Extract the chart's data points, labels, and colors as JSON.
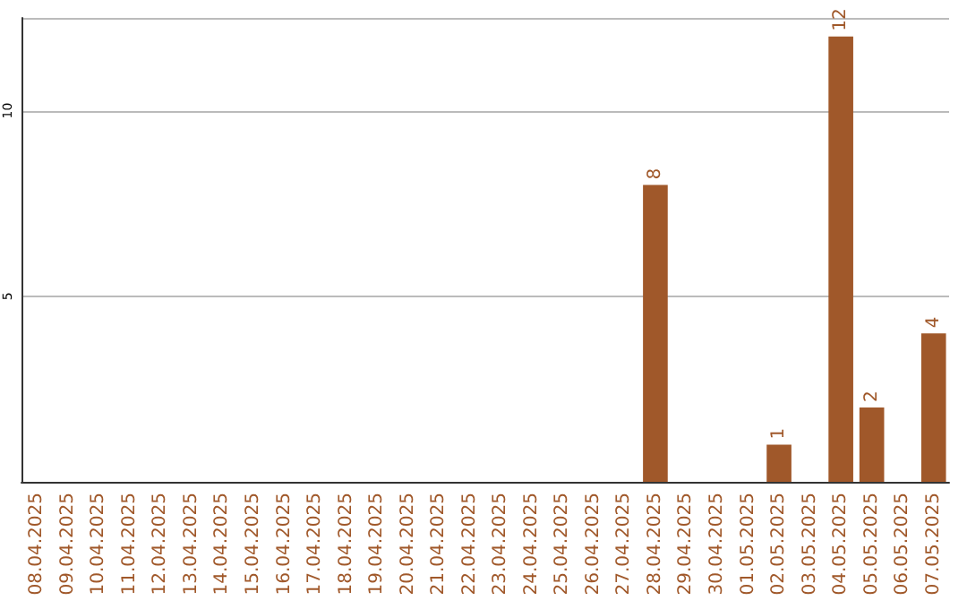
{
  "chart_data": {
    "type": "bar",
    "categories": [
      "08.04.2025",
      "09.04.2025",
      "10.04.2025",
      "11.04.2025",
      "12.04.2025",
      "13.04.2025",
      "14.04.2025",
      "15.04.2025",
      "16.04.2025",
      "17.04.2025",
      "18.04.2025",
      "19.04.2025",
      "20.04.2025",
      "21.04.2025",
      "22.04.2025",
      "23.04.2025",
      "24.04.2025",
      "25.04.2025",
      "26.04.2025",
      "27.04.2025",
      "28.04.2025",
      "29.04.2025",
      "30.04.2025",
      "01.05.2025",
      "02.05.2025",
      "03.05.2025",
      "04.05.2025",
      "05.05.2025",
      "06.05.2025",
      "07.05.2025"
    ],
    "values": [
      0,
      0,
      0,
      0,
      0,
      0,
      0,
      0,
      0,
      0,
      0,
      0,
      0,
      0,
      0,
      0,
      0,
      0,
      0,
      0,
      8,
      0,
      0,
      0,
      1,
      0,
      12,
      2,
      0,
      4
    ],
    "value_labels": [
      null,
      null,
      null,
      null,
      null,
      null,
      null,
      null,
      null,
      null,
      null,
      null,
      null,
      null,
      null,
      null,
      null,
      null,
      null,
      null,
      "8",
      null,
      null,
      null,
      "1",
      null,
      "12",
      "2",
      null,
      "4"
    ],
    "color": "#a0582a",
    "ylim": [
      0,
      12.5
    ],
    "yticks": [
      5,
      10
    ],
    "grid": "y"
  }
}
